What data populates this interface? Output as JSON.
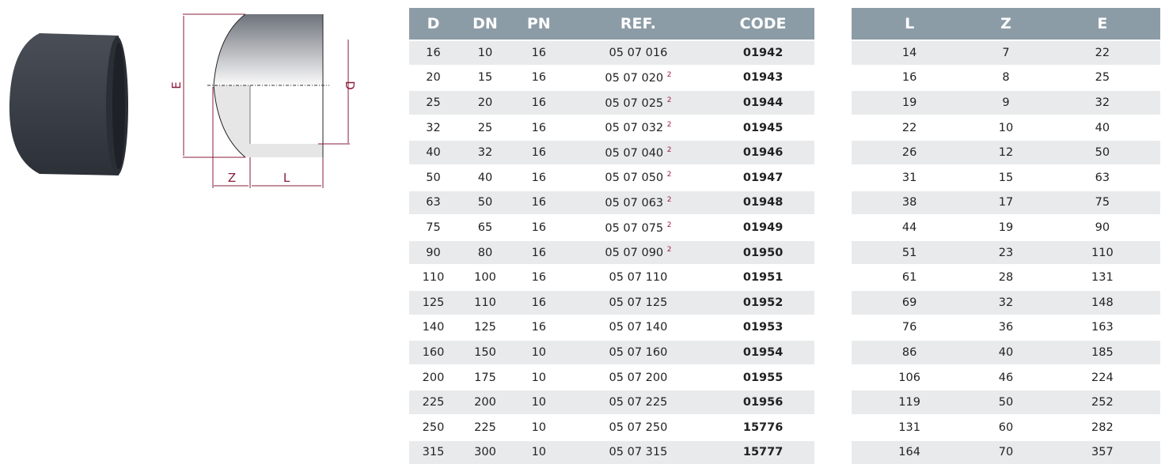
{
  "diagram": {
    "labels": {
      "E": "E",
      "D": "D",
      "Z": "Z",
      "L": "L"
    }
  },
  "table1": {
    "headers": [
      "D",
      "DN",
      "PN",
      "REF.",
      "CODE"
    ],
    "rows": [
      [
        "16",
        "10",
        "16",
        "05 07 016",
        "",
        "01942"
      ],
      [
        "20",
        "15",
        "16",
        "05 07 020",
        "2",
        "01943"
      ],
      [
        "25",
        "20",
        "16",
        "05 07 025",
        "2",
        "01944"
      ],
      [
        "32",
        "25",
        "16",
        "05 07 032",
        "2",
        "01945"
      ],
      [
        "40",
        "32",
        "16",
        "05 07 040",
        "2",
        "01946"
      ],
      [
        "50",
        "40",
        "16",
        "05 07 050",
        "2",
        "01947"
      ],
      [
        "63",
        "50",
        "16",
        "05 07 063",
        "2",
        "01948"
      ],
      [
        "75",
        "65",
        "16",
        "05 07 075",
        "2",
        "01949"
      ],
      [
        "90",
        "80",
        "16",
        "05 07 090",
        "2",
        "01950"
      ],
      [
        "110",
        "100",
        "16",
        "05 07 110",
        "",
        "01951"
      ],
      [
        "125",
        "110",
        "16",
        "05 07 125",
        "",
        "01952"
      ],
      [
        "140",
        "125",
        "16",
        "05 07 140",
        "",
        "01953"
      ],
      [
        "160",
        "150",
        "10",
        "05 07 160",
        "",
        "01954"
      ],
      [
        "200",
        "175",
        "10",
        "05 07 200",
        "",
        "01955"
      ],
      [
        "225",
        "200",
        "10",
        "05 07 225",
        "",
        "01956"
      ],
      [
        "250",
        "225",
        "10",
        "05 07 250",
        "",
        "15776"
      ],
      [
        "315",
        "300",
        "10",
        "05 07 315",
        "",
        "15777"
      ]
    ]
  },
  "table2": {
    "headers": [
      "L",
      "Z",
      "E"
    ],
    "rows": [
      [
        "14",
        "7",
        "22"
      ],
      [
        "16",
        "8",
        "25"
      ],
      [
        "19",
        "9",
        "32"
      ],
      [
        "22",
        "10",
        "40"
      ],
      [
        "26",
        "12",
        "50"
      ],
      [
        "31",
        "15",
        "63"
      ],
      [
        "38",
        "17",
        "75"
      ],
      [
        "44",
        "19",
        "90"
      ],
      [
        "51",
        "23",
        "110"
      ],
      [
        "61",
        "28",
        "131"
      ],
      [
        "69",
        "32",
        "148"
      ],
      [
        "76",
        "36",
        "163"
      ],
      [
        "86",
        "40",
        "185"
      ],
      [
        "106",
        "46",
        "224"
      ],
      [
        "119",
        "50",
        "252"
      ],
      [
        "131",
        "60",
        "282"
      ],
      [
        "164",
        "70",
        "357"
      ]
    ]
  },
  "colors": {
    "header": "#8c9ca7",
    "stripe": "#e9eaeb",
    "dimension": "#8a1c3a",
    "footnote": "#a02040"
  }
}
